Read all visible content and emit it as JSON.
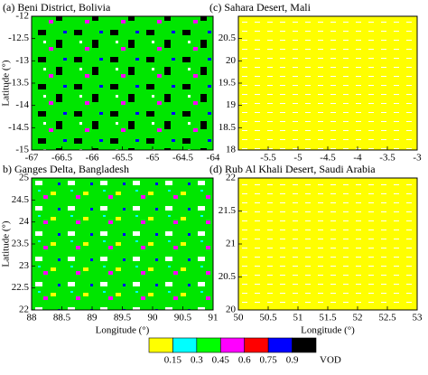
{
  "chart_data": [
    {
      "type": "map",
      "title": "(a) Beni District, Bolivia",
      "ylabel": "Latitude (°)",
      "xlim": [
        -67,
        -64
      ],
      "xticks": [
        -67,
        -66.5,
        -66,
        -65.5,
        -65,
        -64.5,
        -64
      ],
      "ylim": [
        -15,
        -12
      ],
      "yticks": [
        -15,
        -14.5,
        -14,
        -13.5,
        -13,
        -12.5,
        -12
      ]
    },
    {
      "type": "map",
      "title": "(c) Sahara Desert, Mali",
      "xlim": [
        -6,
        -3
      ],
      "xticks": [
        -5.5,
        -5,
        -4.5,
        -4,
        -3.5,
        -3
      ],
      "ylim": [
        18,
        21
      ],
      "yticks": [
        18,
        18.5,
        19,
        19.5,
        20,
        20.5
      ]
    },
    {
      "type": "map",
      "title": "b) Ganges Delta, Bangladesh",
      "xlabel": "Longitude (°)",
      "ylabel": "Latitude (°)",
      "xlim": [
        88,
        91
      ],
      "xticks": [
        88,
        88.5,
        89,
        89.5,
        90,
        90.5,
        91
      ],
      "ylim": [
        22,
        25
      ],
      "yticks": [
        22,
        22.5,
        23,
        23.5,
        24,
        24.5,
        25
      ]
    },
    {
      "type": "map",
      "title": "(d) Rub Al Khali Desert, Saudi Arabia",
      "xlabel": "Longitude (°)",
      "xlim": [
        50,
        53
      ],
      "xticks": [
        50,
        50.5,
        51,
        51.5,
        52,
        52.5,
        53
      ],
      "ylim": [
        20,
        22
      ],
      "yticks": [
        20,
        20.5,
        21,
        21.5,
        22
      ]
    }
  ],
  "colorbar": {
    "label": "VOD",
    "ticks": [
      0.15,
      0.3,
      0.45,
      0.6,
      0.75,
      0.9
    ],
    "colors": [
      "#ffff00",
      "#00ffff",
      "#00ff00",
      "#ff00ff",
      "#ff0000",
      "#0000ff",
      "#000000"
    ]
  }
}
